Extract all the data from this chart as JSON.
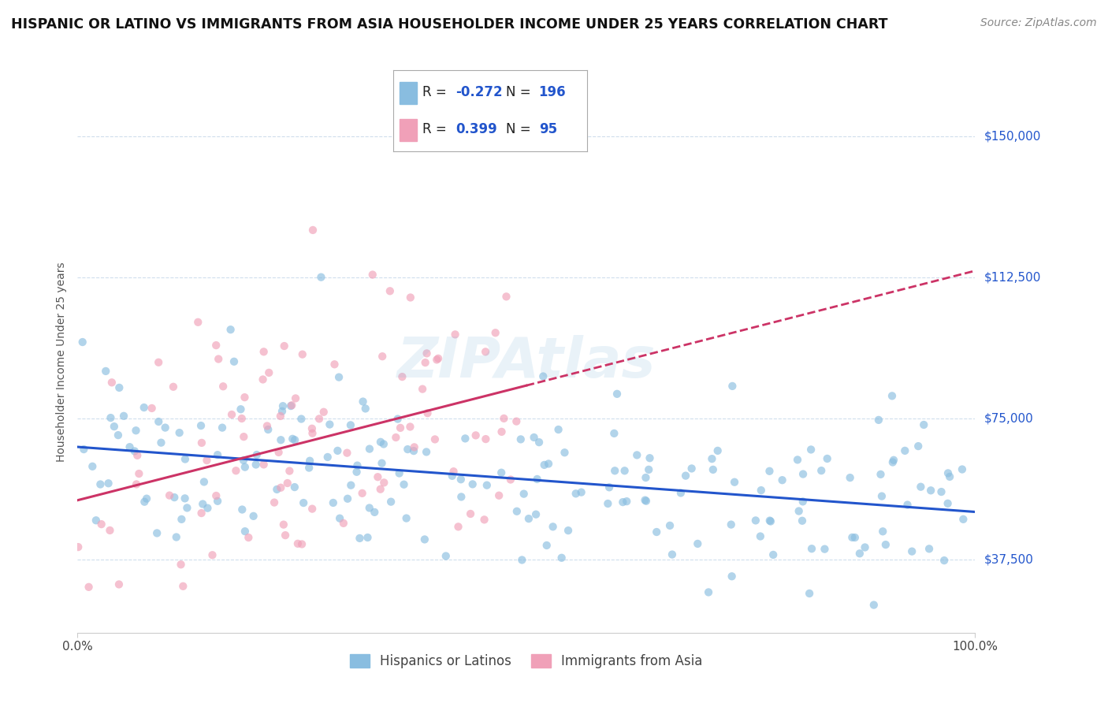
{
  "title": "HISPANIC OR LATINO VS IMMIGRANTS FROM ASIA HOUSEHOLDER INCOME UNDER 25 YEARS CORRELATION CHART",
  "source": "Source: ZipAtlas.com",
  "ylabel": "Householder Income Under 25 years",
  "x_min": 0.0,
  "x_max": 100.0,
  "y_min": 18000,
  "y_max": 162000,
  "yticks": [
    37500,
    75000,
    112500,
    150000
  ],
  "ytick_labels": [
    "$37,500",
    "$75,000",
    "$112,500",
    "$150,000"
  ],
  "xtick_labels": [
    "0.0%",
    "100.0%"
  ],
  "blue_color": "#89bde0",
  "pink_color": "#f0a0b8",
  "blue_line_color": "#2255cc",
  "pink_line_color": "#cc3366",
  "legend_R_blue": "-0.272",
  "legend_N_blue": "196",
  "legend_R_pink": "0.399",
  "legend_N_pink": "95",
  "legend_label_blue": "Hispanics or Latinos",
  "legend_label_pink": "Immigrants from Asia",
  "watermark": "ZIPAtlas",
  "blue_R": -0.272,
  "pink_R": 0.399,
  "blue_N": 196,
  "pink_N": 95,
  "blue_seed": 42,
  "pink_seed": 7,
  "title_fontsize": 12.5,
  "axis_label_fontsize": 10,
  "tick_fontsize": 11,
  "source_fontsize": 10,
  "legend_fontsize": 12,
  "scatter_size": 55,
  "background_color": "#ffffff",
  "grid_color": "#b0c8e0",
  "grid_alpha": 0.6
}
